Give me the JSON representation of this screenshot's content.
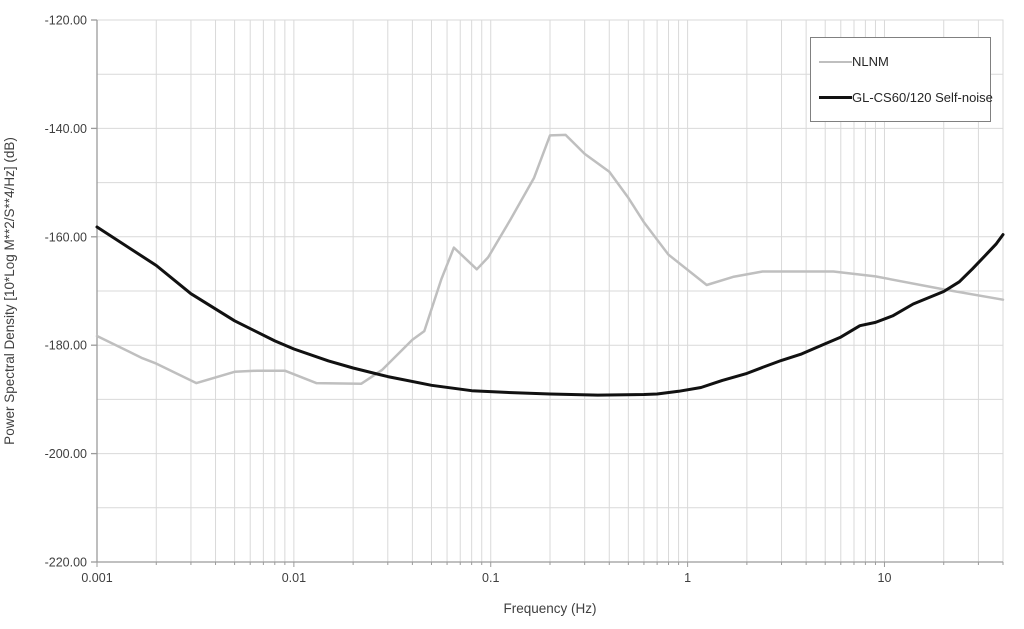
{
  "chart_data": {
    "type": "line",
    "title": "",
    "xlabel": "Frequency (Hz)",
    "ylabel": "Power Spectral Density [10*Log M**2/S**4/Hz] (dB)",
    "x_scale": "log",
    "xlim": [
      0.001,
      40
    ],
    "ylim": [
      -220,
      -120
    ],
    "x_major_ticks": [
      0.001,
      0.01,
      0.1,
      1,
      10
    ],
    "x_major_tick_labels": [
      "0.001",
      "0.01",
      "0.1",
      "1",
      "10"
    ],
    "y_major_ticks": [
      -120,
      -140,
      -160,
      -180,
      -200,
      -220
    ],
    "y_major_tick_labels": [
      "-120.00",
      "-140.00",
      "-160.00",
      "-180.00",
      "-200.00",
      "-220.00"
    ],
    "y_minor_step": 10,
    "grid": true,
    "legend_position": "top-right",
    "series": [
      {
        "name": "NLNM",
        "color": "#bfbfbf",
        "width": 2.5,
        "points": [
          [
            0.001,
            -178.3
          ],
          [
            0.0017,
            -182.4
          ],
          [
            0.002,
            -183.4
          ],
          [
            0.0032,
            -187.0
          ],
          [
            0.005,
            -184.9
          ],
          [
            0.0065,
            -184.7
          ],
          [
            0.009,
            -184.7
          ],
          [
            0.013,
            -187.0
          ],
          [
            0.022,
            -187.1
          ],
          [
            0.028,
            -184.6
          ],
          [
            0.04,
            -179.0
          ],
          [
            0.046,
            -177.4
          ],
          [
            0.056,
            -167.9
          ],
          [
            0.065,
            -162.0
          ],
          [
            0.085,
            -166.0
          ],
          [
            0.097,
            -163.8
          ],
          [
            0.126,
            -156.8
          ],
          [
            0.166,
            -149.1
          ],
          [
            0.2,
            -141.3
          ],
          [
            0.24,
            -141.2
          ],
          [
            0.3,
            -144.7
          ],
          [
            0.4,
            -148.0
          ],
          [
            0.5,
            -152.8
          ],
          [
            0.6,
            -157.3
          ],
          [
            0.8,
            -163.3
          ],
          [
            1.25,
            -168.9
          ],
          [
            1.7,
            -167.4
          ],
          [
            2.4,
            -166.4
          ],
          [
            5.5,
            -166.4
          ],
          [
            9,
            -167.3
          ],
          [
            20,
            -169.7
          ],
          [
            40,
            -171.6
          ]
        ]
      },
      {
        "name": "GL-CS60/120 Self-noise",
        "color": "#111111",
        "width": 3,
        "points": [
          [
            0.001,
            -158.2
          ],
          [
            0.002,
            -165.3
          ],
          [
            0.003,
            -170.5
          ],
          [
            0.005,
            -175.5
          ],
          [
            0.008,
            -179.2
          ],
          [
            0.01,
            -180.7
          ],
          [
            0.015,
            -182.9
          ],
          [
            0.02,
            -184.2
          ],
          [
            0.03,
            -185.8
          ],
          [
            0.05,
            -187.4
          ],
          [
            0.08,
            -188.4
          ],
          [
            0.12,
            -188.7
          ],
          [
            0.2,
            -189.0
          ],
          [
            0.35,
            -189.2
          ],
          [
            0.6,
            -189.1
          ],
          [
            0.7,
            -189.0
          ],
          [
            0.9,
            -188.5
          ],
          [
            1.17,
            -187.8
          ],
          [
            1.5,
            -186.5
          ],
          [
            2,
            -185.2
          ],
          [
            2.4,
            -184.1
          ],
          [
            3,
            -182.8
          ],
          [
            3.8,
            -181.6
          ],
          [
            4.8,
            -180.0
          ],
          [
            6,
            -178.5
          ],
          [
            7.5,
            -176.4
          ],
          [
            9,
            -175.8
          ],
          [
            11,
            -174.6
          ],
          [
            14,
            -172.4
          ],
          [
            20,
            -170.1
          ],
          [
            24,
            -168.3
          ],
          [
            28,
            -165.9
          ],
          [
            33,
            -163.2
          ],
          [
            37,
            -161.3
          ],
          [
            40,
            -159.6
          ]
        ]
      }
    ]
  },
  "legend": {
    "entries": [
      {
        "label": "NLNM"
      },
      {
        "label": "GL-CS60/120 Self-noise"
      }
    ]
  },
  "colors": {
    "background": "#ffffff",
    "gridline": "#d9d9d9",
    "axis": "#9b9b9b",
    "tick": "#9b9b9b",
    "text": "#3f3f3f",
    "legend_border": "#808080"
  }
}
